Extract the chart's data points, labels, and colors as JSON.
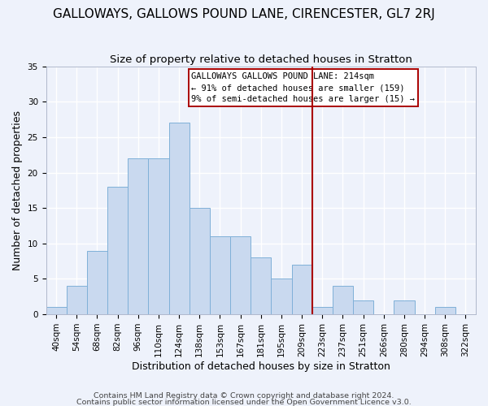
{
  "title": "GALLOWAYS, GALLOWS POUND LANE, CIRENCESTER, GL7 2RJ",
  "subtitle": "Size of property relative to detached houses in Stratton",
  "xlabel": "Distribution of detached houses by size in Stratton",
  "ylabel": "Number of detached properties",
  "bar_labels": [
    "40sqm",
    "54sqm",
    "68sqm",
    "82sqm",
    "96sqm",
    "110sqm",
    "124sqm",
    "138sqm",
    "153sqm",
    "167sqm",
    "181sqm",
    "195sqm",
    "209sqm",
    "223sqm",
    "237sqm",
    "251sqm",
    "266sqm",
    "280sqm",
    "294sqm",
    "308sqm",
    "322sqm"
  ],
  "bar_values": [
    1,
    4,
    9,
    18,
    22,
    22,
    27,
    15,
    11,
    11,
    8,
    5,
    7,
    1,
    4,
    2,
    0,
    2,
    0,
    1,
    0
  ],
  "bar_color": "#c9d9ef",
  "bar_edge_color": "#7fb0d8",
  "ylim": [
    0,
    35
  ],
  "yticks": [
    0,
    5,
    10,
    15,
    20,
    25,
    30,
    35
  ],
  "vline_color": "#aa0000",
  "vline_x_index": 12.5,
  "annotation_title": "GALLOWAYS GALLOWS POUND LANE: 214sqm",
  "annotation_line1": "← 91% of detached houses are smaller (159)",
  "annotation_line2": "9% of semi-detached houses are larger (15) →",
  "footer_line1": "Contains HM Land Registry data © Crown copyright and database right 2024.",
  "footer_line2": "Contains public sector information licensed under the Open Government Licence v3.0.",
  "background_color": "#eef2fb",
  "plot_bg_color": "#eef2fb",
  "grid_color": "#ffffff",
  "title_fontsize": 11,
  "subtitle_fontsize": 9.5,
  "axis_label_fontsize": 9,
  "tick_fontsize": 7.5,
  "footer_fontsize": 6.8,
  "annotation_fontsize": 7.5
}
